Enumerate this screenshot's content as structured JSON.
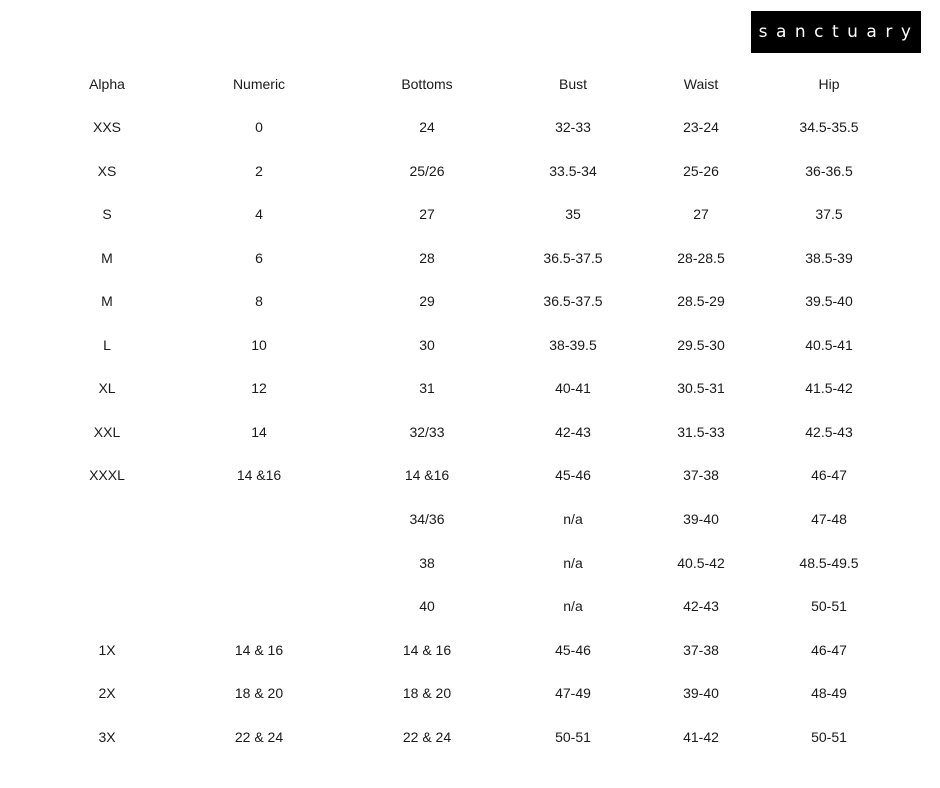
{
  "brand": {
    "logo_text": "sanctuary",
    "logo_bg": "#000000"
  },
  "table": {
    "headers": [
      "Alpha",
      "Numeric",
      "Bottoms",
      "Bust",
      "Waist",
      "Hip"
    ],
    "rows": [
      [
        "XXS",
        "0",
        "24",
        "32-33",
        "23-24",
        "34.5-35.5"
      ],
      [
        "XS",
        "2",
        "25/26",
        "33.5-34",
        "25-26",
        "36-36.5"
      ],
      [
        "S",
        "4",
        "27",
        "35",
        "27",
        "37.5"
      ],
      [
        "M",
        "6",
        "28",
        "36.5-37.5",
        "28-28.5",
        "38.5-39"
      ],
      [
        "M",
        "8",
        "29",
        "36.5-37.5",
        "28.5-29",
        "39.5-40"
      ],
      [
        "L",
        "10",
        "30",
        "38-39.5",
        "29.5-30",
        "40.5-41"
      ],
      [
        "XL",
        "12",
        "31",
        "40-41",
        "30.5-31",
        "41.5-42"
      ],
      [
        "XXL",
        "14",
        "32/33",
        "42-43",
        "31.5-33",
        "42.5-43"
      ],
      [
        "XXXL",
        "14 &16",
        "14 &16",
        "45-46",
        "37-38",
        "46-47"
      ],
      [
        "",
        "",
        "34/36",
        "n/a",
        "39-40",
        "47-48"
      ],
      [
        "",
        "",
        "38",
        "n/a",
        "40.5-42",
        "48.5-49.5"
      ],
      [
        "",
        "",
        "40",
        "n/a",
        "42-43",
        "50-51"
      ],
      [
        "1X",
        "14 & 16",
        "14 & 16",
        "45-46",
        "37-38",
        "46-47"
      ],
      [
        "2X",
        "18 & 20",
        "18 & 20",
        "47-49",
        "39-40",
        "48-49"
      ],
      [
        "3X",
        "22 & 24",
        "22 & 24",
        "50-51",
        "41-42",
        "50-51"
      ]
    ]
  }
}
